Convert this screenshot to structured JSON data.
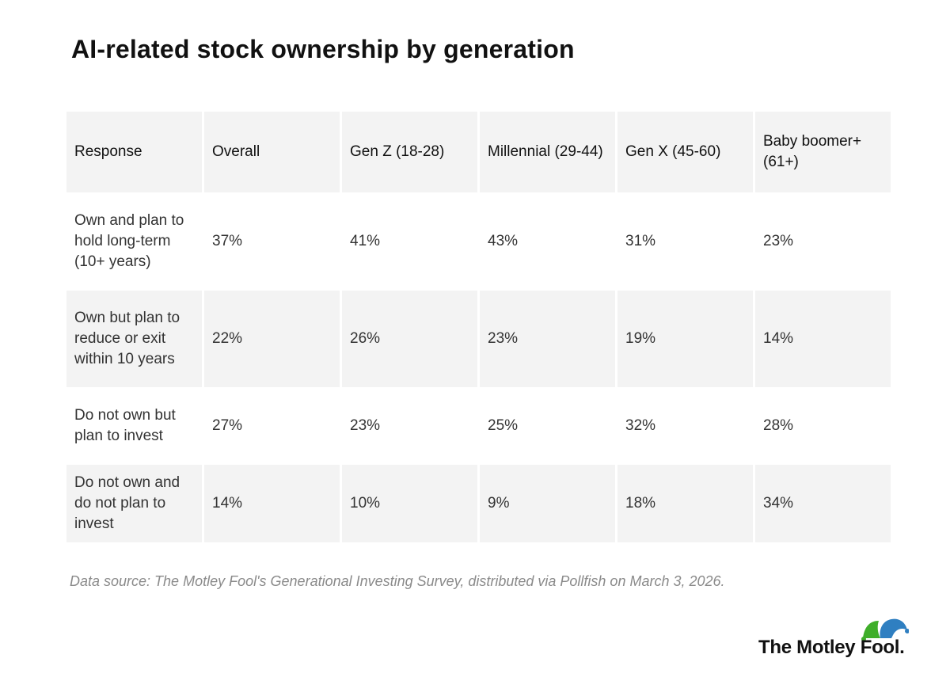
{
  "title": "AI-related stock ownership by generation",
  "chart_data": {
    "type": "table",
    "title": "AI-related stock ownership by generation",
    "columns": [
      "Response",
      "Overall",
      "Gen Z (18-28)",
      "Millennial (29-44)",
      "Gen X (45-60)",
      "Baby boomer+ (61+)"
    ],
    "rows": [
      [
        "Own and plan to hold long-term (10+ years)",
        "37%",
        "41%",
        "43%",
        "31%",
        "23%"
      ],
      [
        "Own but plan to reduce or exit within 10 years",
        "22%",
        "26%",
        "23%",
        "19%",
        "14%"
      ],
      [
        "Do not own but plan to invest",
        "27%",
        "23%",
        "25%",
        "32%",
        "28%"
      ],
      [
        "Do not own and do not plan to invest",
        "14%",
        "10%",
        "9%",
        "18%",
        "34%"
      ]
    ]
  },
  "source": "Data source: The Motley Fool's Generational Investing Survey, distributed via Pollfish on March 3, 2026.",
  "logo": {
    "text": "The Motley Fool.",
    "icon": "jester-hat-icon",
    "colors": {
      "green": "#3fae2a",
      "blue": "#2f7fc1",
      "text": "#111111"
    }
  }
}
